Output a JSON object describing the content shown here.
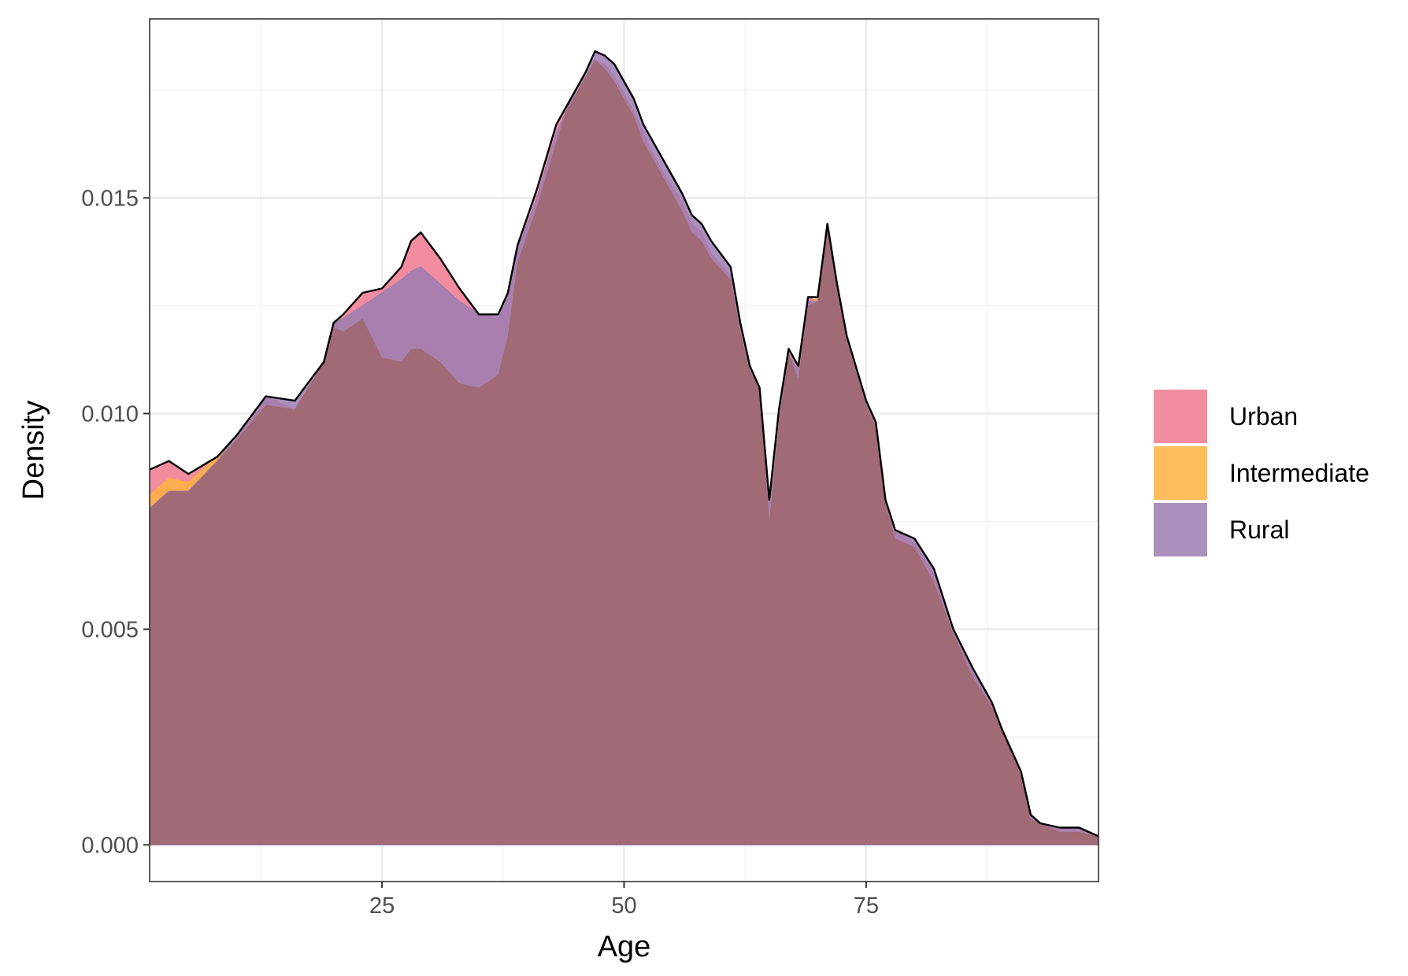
{
  "chart_data": {
    "type": "area",
    "xlabel": "Age",
    "ylabel": "Density",
    "xlim": [
      1,
      99
    ],
    "ylim": [
      -0.00085,
      0.01915
    ],
    "x_ticks": [
      25,
      50,
      75
    ],
    "x_tick_labels": [
      "25",
      "50",
      "75"
    ],
    "y_ticks": [
      0.0,
      0.005,
      0.01,
      0.015
    ],
    "y_tick_labels": [
      "0.000",
      "0.005",
      "0.010",
      "0.015"
    ],
    "grid": true,
    "legend_position": "right",
    "x": [
      1,
      3,
      5,
      8,
      10,
      13,
      16,
      19,
      20,
      21,
      23,
      25,
      27,
      28,
      29,
      31,
      33,
      35,
      37,
      38,
      39,
      41,
      43,
      44,
      45,
      46,
      47,
      48,
      49,
      50,
      51,
      52,
      53,
      54,
      56,
      57,
      58,
      59,
      61,
      62,
      63,
      64,
      65,
      66,
      67,
      68,
      69,
      70,
      71,
      72,
      73,
      75,
      76,
      77,
      78,
      80,
      82,
      84,
      86,
      88,
      89,
      90,
      91,
      92,
      93,
      95,
      97,
      99
    ],
    "series": [
      {
        "name": "Urban",
        "color": "#F0798E",
        "values": [
          0.0087,
          0.0089,
          0.0086,
          0.009,
          0.0095,
          0.0104,
          0.0101,
          0.0112,
          0.0121,
          0.0123,
          0.0128,
          0.0129,
          0.0134,
          0.014,
          0.0142,
          0.0136,
          0.0129,
          0.0123,
          0.0122,
          0.0127,
          0.0139,
          0.0152,
          0.0167,
          0.0171,
          0.0174,
          0.0178,
          0.0182,
          0.0181,
          0.0178,
          0.0174,
          0.017,
          0.0165,
          0.016,
          0.0156,
          0.0149,
          0.0144,
          0.0142,
          0.0137,
          0.0132,
          0.012,
          0.0111,
          0.0106,
          0.008,
          0.0101,
          0.0115,
          0.0111,
          0.0127,
          0.0126,
          0.0144,
          0.013,
          0.0118,
          0.0103,
          0.0098,
          0.008,
          0.0073,
          0.007,
          0.0063,
          0.005,
          0.004,
          0.0033,
          0.0027,
          0.0022,
          0.0017,
          0.0007,
          0.0005,
          0.0004,
          0.0004,
          0.0002
        ]
      },
      {
        "name": "Intermediate",
        "color": "#FDB13F",
        "values": [
          0.0081,
          0.0085,
          0.0084,
          0.009,
          0.0094,
          0.0102,
          0.0101,
          0.0112,
          0.012,
          0.0119,
          0.0122,
          0.0113,
          0.0112,
          0.0115,
          0.0115,
          0.0112,
          0.0107,
          0.0106,
          0.0109,
          0.0118,
          0.0135,
          0.0148,
          0.0163,
          0.017,
          0.0174,
          0.0178,
          0.0182,
          0.018,
          0.0177,
          0.0173,
          0.0169,
          0.0163,
          0.0159,
          0.0155,
          0.0147,
          0.0142,
          0.014,
          0.0136,
          0.0131,
          0.0119,
          0.011,
          0.0106,
          0.0075,
          0.0098,
          0.0114,
          0.0108,
          0.0125,
          0.0127,
          0.0144,
          0.0129,
          0.0117,
          0.0102,
          0.0097,
          0.0079,
          0.0071,
          0.0069,
          0.0061,
          0.0049,
          0.0039,
          0.0032,
          0.0027,
          0.0022,
          0.0016,
          0.0006,
          0.0005,
          0.0003,
          0.0003,
          0.0002
        ]
      },
      {
        "name": "Rural",
        "color": "#9C7DB2",
        "values": [
          0.0078,
          0.0082,
          0.0082,
          0.0089,
          0.0095,
          0.0104,
          0.0103,
          0.0112,
          0.0121,
          0.0122,
          0.0125,
          0.0128,
          0.0131,
          0.0133,
          0.0134,
          0.013,
          0.0126,
          0.0123,
          0.0123,
          0.0128,
          0.0138,
          0.015,
          0.0165,
          0.017,
          0.0175,
          0.0179,
          0.0184,
          0.0183,
          0.0181,
          0.0177,
          0.0173,
          0.0167,
          0.0163,
          0.0159,
          0.0151,
          0.0146,
          0.0144,
          0.014,
          0.0134,
          0.0121,
          0.0111,
          0.0106,
          0.0078,
          0.01,
          0.0114,
          0.011,
          0.0126,
          0.0126,
          0.0144,
          0.013,
          0.0118,
          0.0103,
          0.0098,
          0.008,
          0.0073,
          0.0071,
          0.0064,
          0.005,
          0.0041,
          0.0033,
          0.0027,
          0.0022,
          0.0017,
          0.0007,
          0.0005,
          0.0004,
          0.0004,
          0.0002
        ]
      }
    ],
    "overlap_color": "#A06A77"
  }
}
